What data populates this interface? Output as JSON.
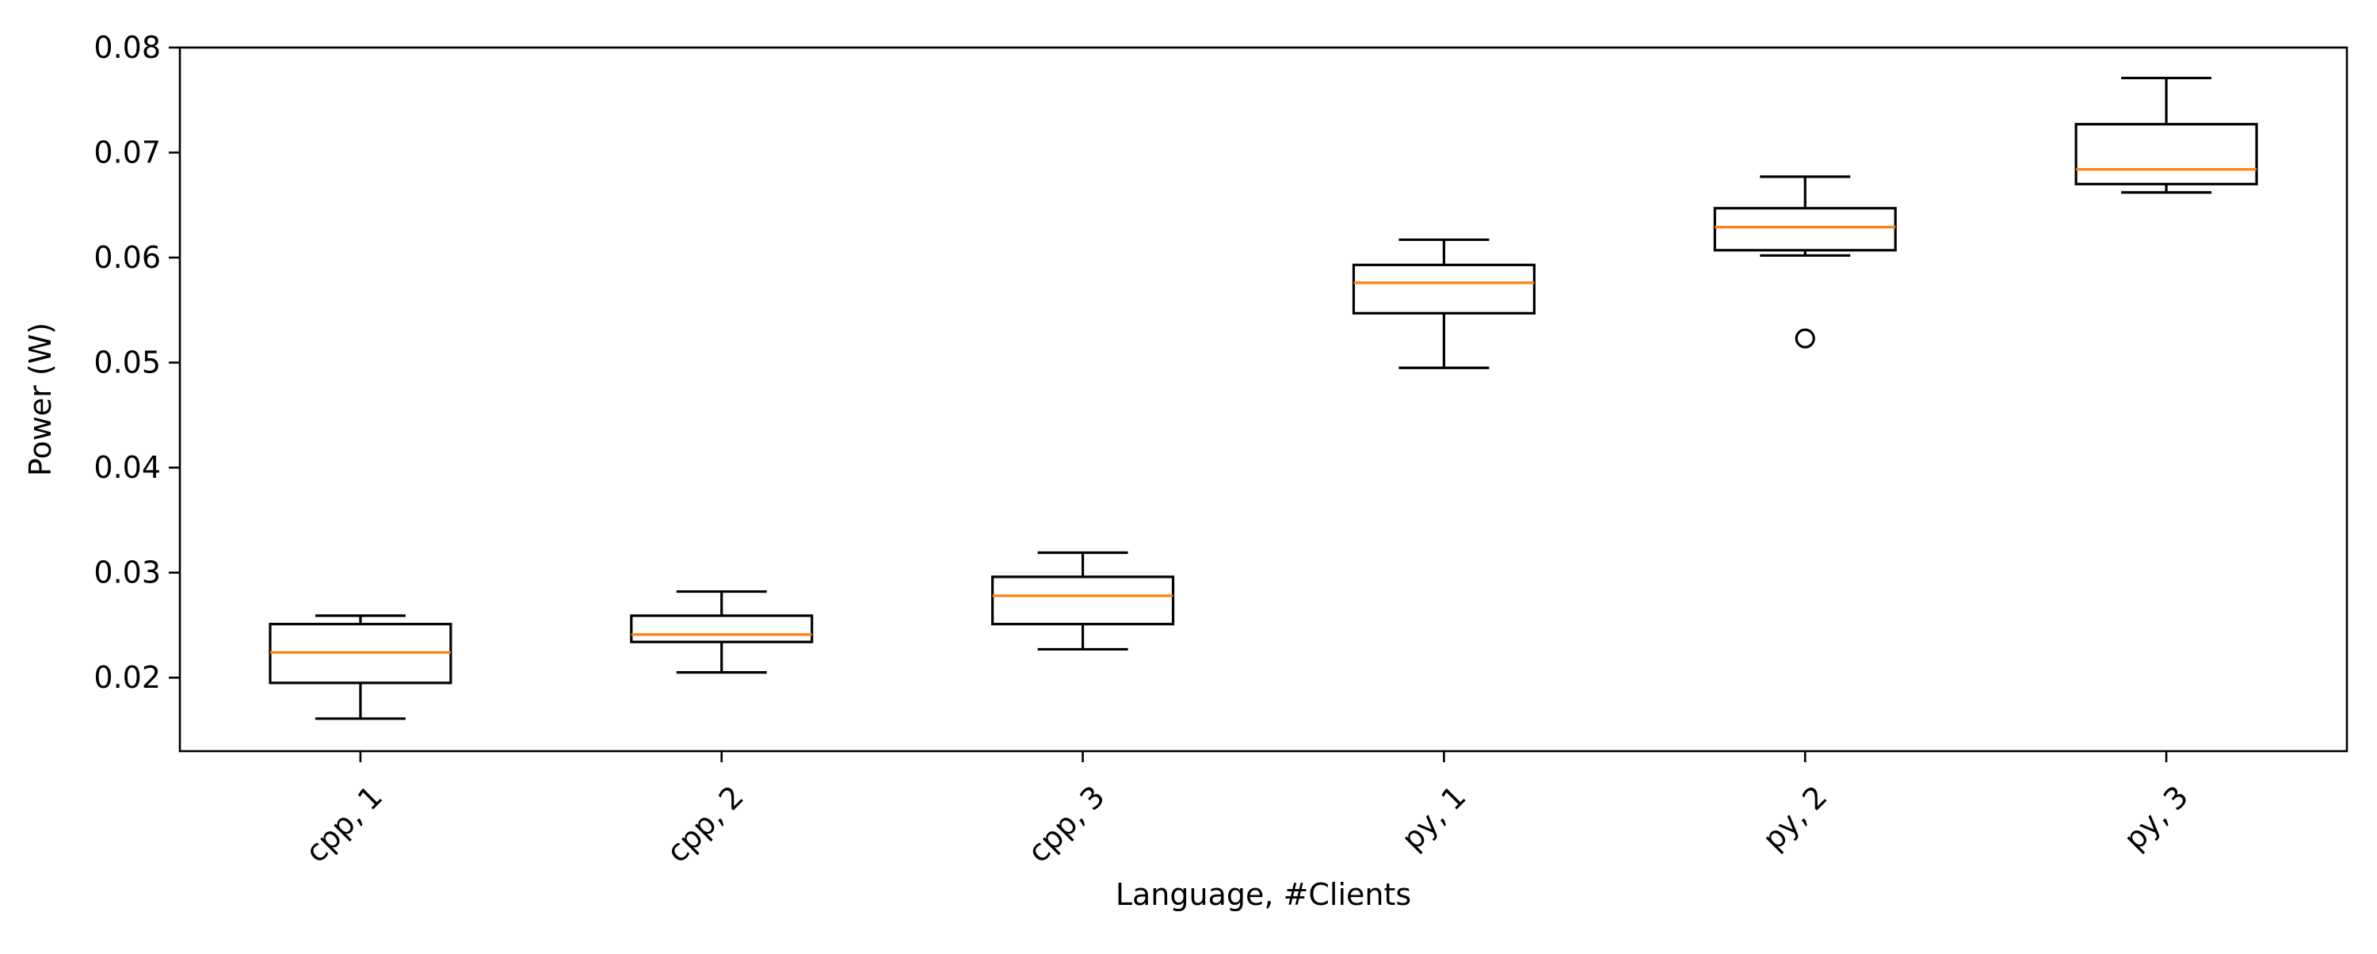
{
  "chart_data": {
    "type": "box",
    "title": "",
    "xlabel": "Language, #Clients",
    "ylabel": "Power (W)",
    "ylim": [
      0.013,
      0.08
    ],
    "yticks": [
      0.02,
      0.03,
      0.04,
      0.05,
      0.06,
      0.07,
      0.08
    ],
    "ytick_labels": [
      "0.02",
      "0.03",
      "0.04",
      "0.05",
      "0.06",
      "0.07",
      "0.08"
    ],
    "categories": [
      "cpp, 1",
      "cpp, 2",
      "cpp, 3",
      "py, 1",
      "py, 2",
      "py, 3"
    ],
    "x_tick_rotation_deg": 45,
    "grid": false,
    "boxes": [
      {
        "category": "cpp, 1",
        "whisker_low": 0.0161,
        "q1": 0.0195,
        "median": 0.0224,
        "q3": 0.0251,
        "whisker_high": 0.0259,
        "outliers": []
      },
      {
        "category": "cpp, 2",
        "whisker_low": 0.0205,
        "q1": 0.0234,
        "median": 0.0241,
        "q3": 0.0259,
        "whisker_high": 0.0282,
        "outliers": []
      },
      {
        "category": "cpp, 3",
        "whisker_low": 0.0227,
        "q1": 0.0251,
        "median": 0.0278,
        "q3": 0.0296,
        "whisker_high": 0.0319,
        "outliers": []
      },
      {
        "category": "py, 1",
        "whisker_low": 0.0495,
        "q1": 0.0547,
        "median": 0.0576,
        "q3": 0.0593,
        "whisker_high": 0.0617,
        "outliers": []
      },
      {
        "category": "py, 2",
        "whisker_low": 0.0602,
        "q1": 0.0607,
        "median": 0.0629,
        "q3": 0.0647,
        "whisker_high": 0.0677,
        "outliers": [
          0.0523
        ]
      },
      {
        "category": "py, 3",
        "whisker_low": 0.0662,
        "q1": 0.067,
        "median": 0.0684,
        "q3": 0.0727,
        "whisker_high": 0.0771,
        "outliers": []
      }
    ],
    "colors": {
      "box": "#000000",
      "median": "#ff7f0e",
      "whisker": "#000000",
      "outlier": "#000000"
    }
  }
}
